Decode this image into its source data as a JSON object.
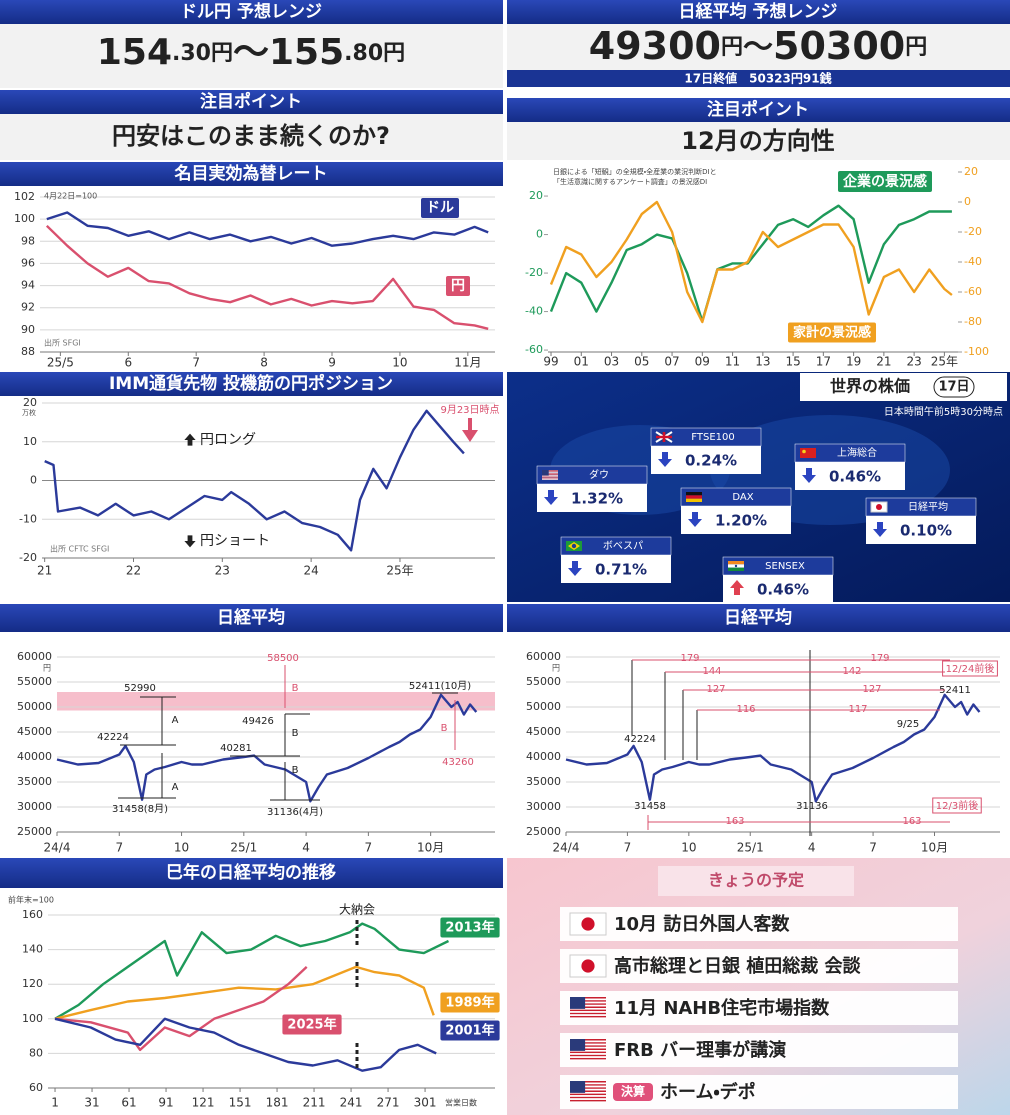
{
  "header_left": {
    "title": "ドル円 予想レンジ",
    "range": [
      "154",
      ".30円",
      "～155",
      ".80円"
    ]
  },
  "header_right": {
    "title": "日経平均 予想レンジ",
    "range": [
      "49300",
      "円",
      "～",
      "50300",
      "円"
    ],
    "note": "17日終値　50323円91銭"
  },
  "point_left": {
    "label": "注目ポイント",
    "text": "円安はこのまま続くのか?"
  },
  "point_right": {
    "label": "注目ポイント",
    "text": "12月の方向性"
  },
  "world_stocks": {
    "title": "世界の株価",
    "date": "17日",
    "note": "日本時間午前5時30分時点",
    "items": [
      {
        "flag": "uk",
        "name": "FTSE100",
        "change": "0.24%",
        "direction": "down"
      },
      {
        "flag": "cn",
        "name": "上海総合",
        "change": "0.46%",
        "direction": "down"
      },
      {
        "flag": "us",
        "name": "ダウ",
        "change": "1.32%",
        "direction": "down"
      },
      {
        "flag": "de",
        "name": "DAX",
        "change": "1.20%",
        "direction": "down"
      },
      {
        "flag": "jp",
        "name": "日経平均",
        "change": "0.10%",
        "direction": "down"
      },
      {
        "flag": "br",
        "name": "ボベスパ",
        "change": "0.71%",
        "direction": "down"
      },
      {
        "flag": "in",
        "name": "SENSEX",
        "change": "0.46%",
        "direction": "up"
      }
    ]
  },
  "schedule": {
    "title": "きょうの予定",
    "items": [
      {
        "flag": "jp",
        "text": "10月 訪日外国人客数"
      },
      {
        "flag": "jp",
        "text": "高市総理と日銀 植田総裁 会談"
      },
      {
        "flag": "us",
        "text": "11月 NAHB住宅市場指数"
      },
      {
        "flag": "us",
        "text": "FRB バー理事が講演"
      },
      {
        "flag": "us",
        "badge": "決算",
        "text": "ホーム・デポ"
      }
    ]
  },
  "chart_data": [
    {
      "type": "line",
      "title": "名目実効為替レート",
      "note": "4月22日=100",
      "source": "出所 SFGI",
      "grid": true,
      "x": [
        -0.2,
        0.1,
        0.4,
        0.7,
        1.0,
        1.3,
        1.6,
        1.9,
        2.2,
        2.5,
        2.8,
        3.1,
        3.4,
        3.7,
        4.0,
        4.3,
        4.6,
        4.9,
        5.2,
        5.5,
        5.8,
        6.1,
        6.3
      ],
      "xlim": [
        -0.3,
        6.4
      ],
      "xticks": [
        {
          "value": 0,
          "label": "25/5"
        },
        {
          "value": 1,
          "label": "6"
        },
        {
          "value": 2,
          "label": "7"
        },
        {
          "value": 3,
          "label": "8"
        },
        {
          "value": 4,
          "label": "9"
        },
        {
          "value": 5,
          "label": "10"
        },
        {
          "value": 6,
          "label": "11月"
        }
      ],
      "ylim": [
        88,
        102
      ],
      "yticks": [
        88,
        90,
        92,
        94,
        96,
        98,
        100,
        102
      ],
      "series": [
        {
          "name": "ドル",
          "color": "#2b3a9a",
          "values": [
            100,
            100.6,
            99.4,
            99.2,
            98.5,
            98.9,
            98.2,
            98.8,
            98.2,
            98.6,
            98,
            98.4,
            97.8,
            98.3,
            97.6,
            97.8,
            98.2,
            98.5,
            98.2,
            98.8,
            98.6,
            99.3,
            98.8
          ]
        },
        {
          "name": "円",
          "color": "#d9506e",
          "values": [
            99.4,
            97.6,
            96,
            94.8,
            95.6,
            94.4,
            94.2,
            93.3,
            92.8,
            92.5,
            93.1,
            92.3,
            92.8,
            92.2,
            92.6,
            92.4,
            92.6,
            94.6,
            92.1,
            91.8,
            90.6,
            90.4,
            90.1
          ]
        }
      ]
    },
    {
      "type": "line",
      "note": [
        "日銀による「短観」の全規模・全産業の業況判断DIと",
        "「生活意識に関するアンケート調査」の景況感DI"
      ],
      "grid": false,
      "x": [
        1999,
        2000,
        2001,
        2002,
        2003,
        2004,
        2005,
        2006,
        2007,
        2008,
        2009,
        2010,
        2011,
        2012,
        2013,
        2014,
        2015,
        2016,
        2017,
        2018,
        2019,
        2020,
        2021,
        2022,
        2023,
        2024,
        2025,
        2025.5
      ],
      "xlim": [
        1998.8,
        2025.9
      ],
      "xticks": [
        {
          "value": 1999,
          "label": "99"
        },
        {
          "value": 2001,
          "label": "01"
        },
        {
          "value": 2003,
          "label": "03"
        },
        {
          "value": 2005,
          "label": "05"
        },
        {
          "value": 2007,
          "label": "07"
        },
        {
          "value": 2009,
          "label": "09"
        },
        {
          "value": 2011,
          "label": "11"
        },
        {
          "value": 2013,
          "label": "13"
        },
        {
          "value": 2015,
          "label": "15"
        },
        {
          "value": 2017,
          "label": "17"
        },
        {
          "value": 2019,
          "label": "19"
        },
        {
          "value": 2021,
          "label": "21"
        },
        {
          "value": 2023,
          "label": "23"
        },
        {
          "value": 2025,
          "label": "25年"
        }
      ],
      "ylim": [
        -61,
        32.5
      ],
      "yticks": [
        -60,
        -40,
        -20,
        0,
        20
      ],
      "y2lim": [
        -100,
        20
      ],
      "y2ticks": [
        -100,
        -80,
        -60,
        -40,
        -20,
        0,
        20
      ],
      "series": [
        {
          "name": "企業の景況感",
          "color": "#1e9a5a",
          "values": [
            -40,
            -20,
            -25,
            -40,
            -25,
            -8,
            -5,
            0,
            -2,
            -20,
            -45,
            -18,
            -15,
            -15,
            -5,
            5,
            8,
            4,
            10,
            15,
            8,
            -25,
            -5,
            5,
            8,
            12,
            12,
            12
          ]
        },
        {
          "name": "家計の景況感",
          "color": "#f0a020",
          "axis": "y2",
          "values": [
            -55,
            -30,
            -35,
            -50,
            -40,
            -25,
            -8,
            0,
            -20,
            -60,
            -80,
            -45,
            -45,
            -40,
            -20,
            -30,
            -25,
            -20,
            -15,
            -15,
            -30,
            -75,
            -50,
            -45,
            -60,
            -45,
            -58,
            -62
          ]
        }
      ]
    },
    {
      "type": "line",
      "title": "IMM通貨先物 投機筋の円ポジション",
      "unit": "万枚",
      "long_label": "円ロング",
      "short_label": "円ショート",
      "note": "9月23日時点",
      "source": "出所 CFTC SFGI",
      "grid": true,
      "color": "#2b3a9a",
      "x": [
        2021.0,
        2021.1,
        2021.15,
        2021.4,
        2021.6,
        2021.8,
        2022.0,
        2022.2,
        2022.4,
        2022.6,
        2022.8,
        2023.0,
        2023.1,
        2023.3,
        2023.5,
        2023.7,
        2023.9,
        2024.1,
        2024.3,
        2024.45,
        2024.55,
        2024.7,
        2024.85,
        2025.0,
        2025.15,
        2025.3,
        2025.45,
        2025.6,
        2025.72
      ],
      "values": [
        5,
        4,
        -8,
        -7,
        -9,
        -6,
        -9,
        -8,
        -10,
        -7,
        -4,
        -5,
        -3,
        -6,
        -10,
        -8,
        -11,
        -12,
        -14,
        -18,
        -5,
        3,
        -2,
        6,
        13,
        18,
        14,
        10,
        7
      ],
      "xlim": [
        2020.97,
        2026.07
      ],
      "xticks": [
        {
          "value": 2021,
          "label": "21"
        },
        {
          "value": 2022,
          "label": "22"
        },
        {
          "value": 2023,
          "label": "23"
        },
        {
          "value": 2024,
          "label": "24"
        },
        {
          "value": 2025,
          "label": "25年"
        }
      ],
      "ylim": [
        -20,
        20
      ],
      "yticks": [
        -20,
        -10,
        0,
        10,
        20
      ]
    },
    {
      "type": "line",
      "title": "日経平均",
      "unit": "円",
      "grid": true,
      "color": "#2b3a9a",
      "band": [
        49300,
        53000
      ],
      "x": [
        0,
        1,
        2,
        3,
        3.3,
        3.7,
        4.1,
        4.3,
        4.7,
        5.2,
        6,
        6.5,
        7,
        8,
        9,
        9.5,
        10,
        11,
        12,
        12.2,
        12.6,
        13,
        14,
        15,
        16,
        16.5,
        17,
        17.5,
        18,
        18.5,
        19,
        19.3,
        19.6,
        19.9,
        20.2
      ],
      "values": [
        39500,
        38500,
        38800,
        40500,
        42224,
        39000,
        31458,
        36500,
        37500,
        38000,
        39000,
        38500,
        38500,
        39500,
        40000,
        40281,
        38500,
        37500,
        35000,
        31136,
        34000,
        36500,
        37800,
        39800,
        42000,
        43000,
        44500,
        45500,
        48000,
        52411,
        50000,
        51000,
        48500,
        50500,
        49000
      ],
      "xlim": [
        0,
        21.1
      ],
      "xticks": [
        {
          "value": 0,
          "label": "24/4"
        },
        {
          "value": 3,
          "label": "7"
        },
        {
          "value": 6,
          "label": "10"
        },
        {
          "value": 9,
          "label": "25/1"
        },
        {
          "value": 12,
          "label": "4"
        },
        {
          "value": 15,
          "label": "7"
        },
        {
          "value": 18,
          "label": "10月"
        }
      ],
      "ylim": [
        25000,
        60000
      ],
      "yticks": [
        25000,
        30000,
        35000,
        40000,
        45000,
        50000,
        55000,
        60000
      ],
      "annotations": [
        {
          "text": "52990",
          "color": "#222"
        },
        {
          "text": "42224",
          "color": "#222"
        },
        {
          "text": "A",
          "color": "#222"
        },
        {
          "text": "A",
          "color": "#222"
        },
        {
          "text": "40281",
          "color": "#222"
        },
        {
          "text": "49426",
          "color": "#222"
        },
        {
          "text": "B",
          "color": "#222"
        },
        {
          "text": "B",
          "color": "#222"
        },
        {
          "text": "58500",
          "color": "#d9506e"
        },
        {
          "text": "B",
          "color": "#d9506e"
        },
        {
          "text": "31458(8月)",
          "color": "#222"
        },
        {
          "text": "31136(4月)",
          "color": "#222"
        },
        {
          "text": "52411(10月)",
          "color": "#222"
        },
        {
          "text": "43260",
          "color": "#d9506e"
        },
        {
          "text": "B",
          "color": "#d9506e"
        }
      ]
    },
    {
      "type": "line",
      "title": "日経平均",
      "unit": "円",
      "grid": true,
      "color": "#2b3a9a",
      "x": [
        0,
        1,
        2,
        3,
        3.3,
        3.7,
        4.1,
        4.3,
        4.7,
        5.2,
        6,
        6.5,
        7,
        8,
        9,
        9.5,
        10,
        11,
        12,
        12.2,
        12.6,
        13,
        14,
        15,
        16,
        16.5,
        17,
        17.5,
        18,
        18.5,
        19,
        19.3,
        19.6,
        19.9,
        20.2
      ],
      "values": [
        39500,
        38500,
        38800,
        40500,
        42224,
        39000,
        31458,
        36500,
        37500,
        38000,
        39000,
        38500,
        38500,
        39500,
        40000,
        40281,
        38500,
        37500,
        35000,
        31136,
        34000,
        36500,
        37800,
        39800,
        42000,
        43000,
        44500,
        45500,
        48000,
        52411,
        50000,
        51000,
        48500,
        50500,
        49000
      ],
      "xlim": [
        0,
        21.2
      ],
      "xticks": [
        {
          "value": 0,
          "label": "24/4"
        },
        {
          "value": 3,
          "label": "7"
        },
        {
          "value": 6,
          "label": "10"
        },
        {
          "value": 9,
          "label": "25/1"
        },
        {
          "value": 12,
          "label": "4"
        },
        {
          "value": 15,
          "label": "7"
        },
        {
          "value": 18,
          "label": "10月"
        }
      ],
      "ylim": [
        25000,
        60000
      ],
      "yticks": [
        25000,
        30000,
        35000,
        40000,
        45000,
        50000,
        55000,
        60000
      ],
      "annotations": [
        {
          "text": "179",
          "color": "#d9506e"
        },
        {
          "text": "179",
          "color": "#d9506e"
        },
        {
          "text": "144",
          "color": "#d9506e"
        },
        {
          "text": "142",
          "color": "#d9506e"
        },
        {
          "text": "127",
          "color": "#d9506e"
        },
        {
          "text": "127",
          "color": "#d9506e"
        },
        {
          "text": "116",
          "color": "#d9506e"
        },
        {
          "text": "117",
          "color": "#d9506e"
        },
        {
          "text": "12/24前後",
          "color": "#d9506e"
        },
        {
          "text": "52411",
          "color": "#222"
        },
        {
          "text": "9/25",
          "color": "#222"
        },
        {
          "text": "42224",
          "color": "#222"
        },
        {
          "text": "31458",
          "color": "#222"
        },
        {
          "text": "31136",
          "color": "#222"
        },
        {
          "text": "12/3前後",
          "color": "#d9506e"
        },
        {
          "text": "163",
          "color": "#d9506e"
        },
        {
          "text": "163",
          "color": "#d9506e"
        }
      ]
    },
    {
      "type": "line",
      "title": "巳年の日経平均の推移",
      "ylabel": "前年末=100",
      "xlabel": "営業日数",
      "event": "大納会",
      "grid": true,
      "xlim": [
        -4.7,
        357.7
      ],
      "xticks": [
        1,
        31,
        61,
        91,
        121,
        151,
        181,
        211,
        241,
        271,
        301
      ],
      "ylim": [
        60,
        160
      ],
      "yticks": [
        60,
        80,
        100,
        120,
        140,
        160
      ],
      "series": [
        {
          "name": "2013年",
          "color": "#1e9a5a",
          "x": [
            1,
            20,
            40,
            60,
            90,
            100,
            120,
            140,
            160,
            180,
            200,
            220,
            240,
            250,
            260,
            280,
            300,
            320
          ],
          "values": [
            100,
            108,
            120,
            130,
            145,
            125,
            150,
            138,
            140,
            148,
            142,
            145,
            150,
            155,
            152,
            140,
            138,
            145
          ]
        },
        {
          "name": "1989年",
          "color": "#f0a020",
          "x": [
            1,
            30,
            60,
            90,
            120,
            150,
            180,
            210,
            245,
            260,
            280,
            300,
            308
          ],
          "values": [
            100,
            105,
            110,
            112,
            115,
            118,
            117,
            120,
            130,
            127,
            125,
            118,
            102
          ]
        },
        {
          "name": "2025年",
          "color": "#d9506e",
          "x": [
            1,
            30,
            60,
            70,
            90,
            110,
            130,
            150,
            170,
            190,
            205
          ],
          "values": [
            100,
            98,
            92,
            82,
            95,
            90,
            100,
            105,
            110,
            120,
            130
          ]
        },
        {
          "name": "2001年",
          "color": "#2b3a9a",
          "x": [
            1,
            30,
            50,
            70,
            90,
            110,
            130,
            150,
            170,
            190,
            210,
            230,
            250,
            265,
            280,
            295,
            310
          ],
          "values": [
            100,
            95,
            88,
            85,
            100,
            95,
            92,
            85,
            80,
            75,
            73,
            76,
            70,
            72,
            82,
            85,
            80
          ]
        }
      ]
    }
  ]
}
